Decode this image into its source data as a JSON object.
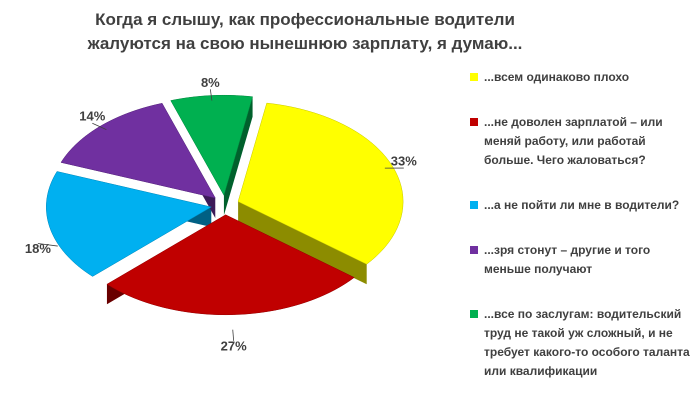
{
  "chart_data": {
    "type": "pie",
    "title": "Когда я слышу, как профессиональные водители жалуются на свою нынешнюю зарплату, я думаю...",
    "categories": [
      "...всем одинаково плохо",
      "...не доволен зарплатой – или меняй работу, или работай больше. Чего жаловаться?",
      "...а не пойти ли мне в водители?",
      "...зря стонут – другие и того меньше получают",
      "...все по заслугам: водительский труд не такой уж сложный, и не требует какого-то особого таланта или квалификации"
    ],
    "values": [
      33,
      27,
      18,
      14,
      8
    ],
    "value_labels": [
      "33%",
      "27%",
      "18%",
      "14%",
      "8%"
    ],
    "colors": [
      "#ffff00",
      "#c00000",
      "#00b0f0",
      "#7030a0",
      "#00b050"
    ]
  }
}
